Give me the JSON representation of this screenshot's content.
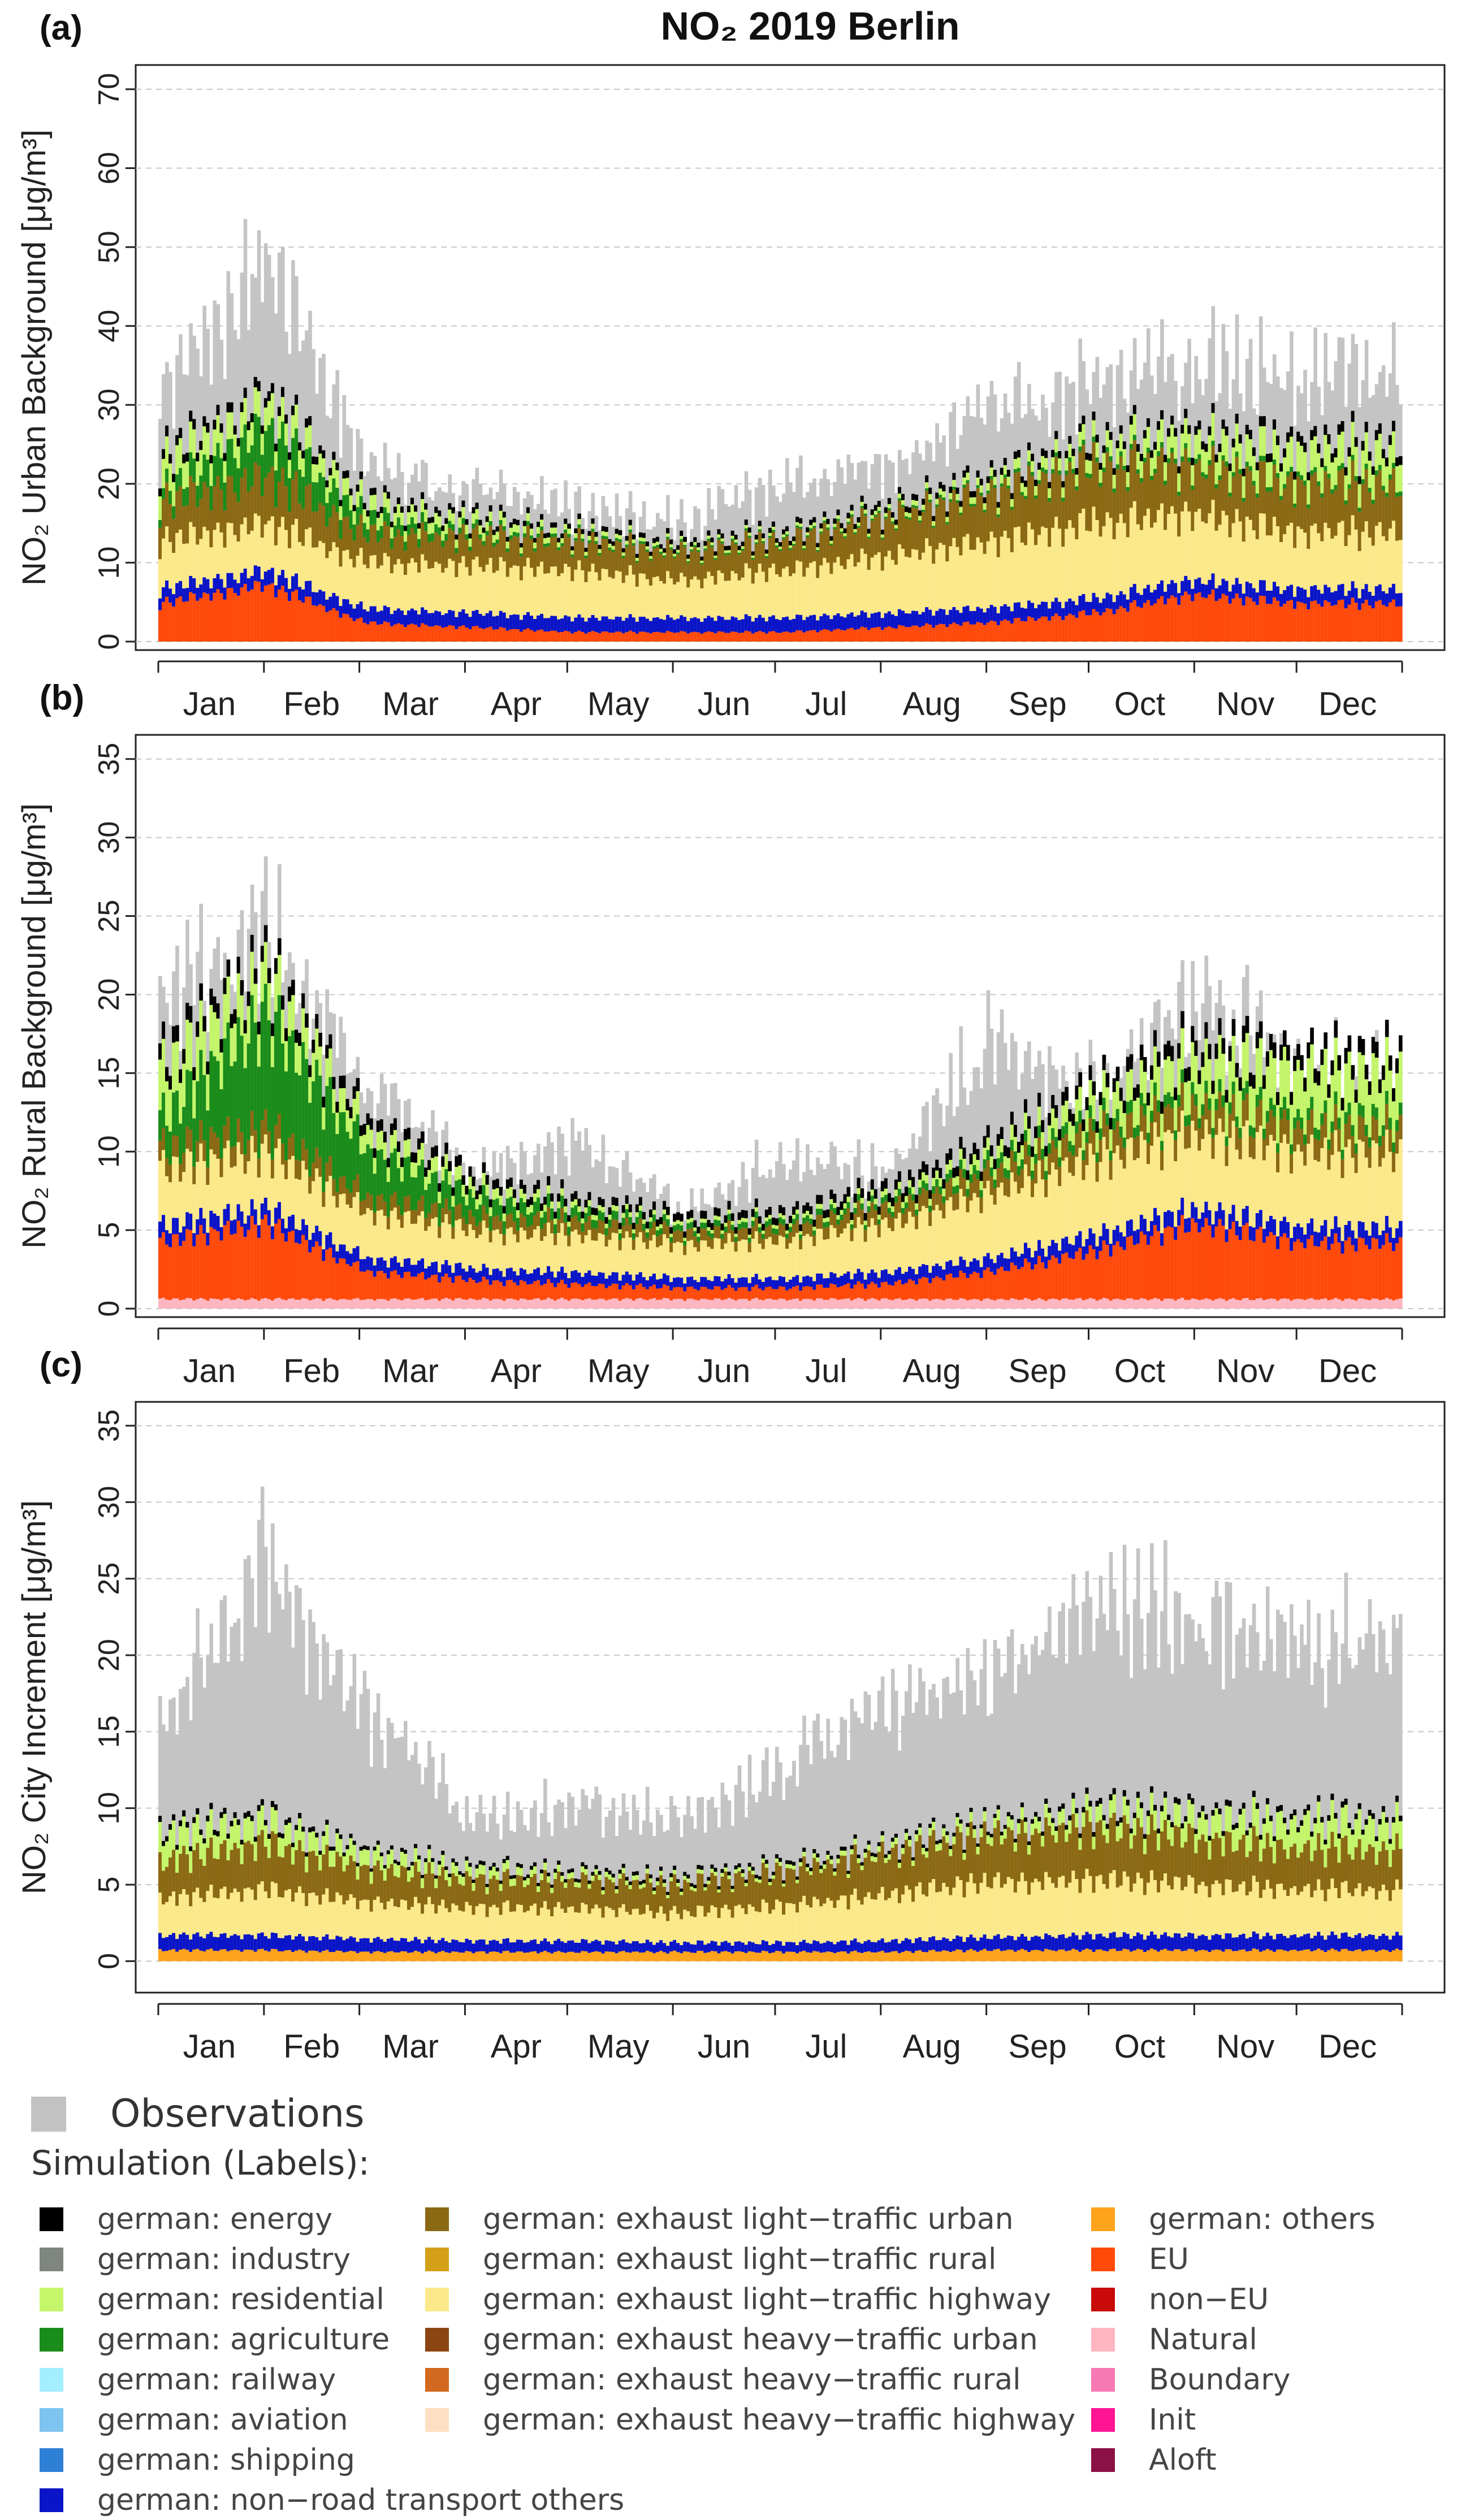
{
  "figure_title": "NO₂  2019 Berlin",
  "panels": [
    {
      "tag": "(a)",
      "ylabel": "NO₂ Urban Background [μg/m³]"
    },
    {
      "tag": "(b)",
      "ylabel": "NO₂ Rural Background [μg/m³]"
    },
    {
      "tag": "(c)",
      "ylabel": "NO₂ City Increment [μg/m³]"
    }
  ],
  "legend": {
    "observations_label": "Observations",
    "simulation_title": "Simulation (Labels):",
    "columns": [
      [
        {
          "label": "german: energy",
          "color": "#000000"
        },
        {
          "label": "german: industry",
          "color": "#7f8580"
        },
        {
          "label": "german: residential",
          "color": "#c4f56a"
        },
        {
          "label": "german: agriculture",
          "color": "#1a8c1a"
        },
        {
          "label": "german: railway",
          "color": "#a3eeff"
        },
        {
          "label": "german: aviation",
          "color": "#7ec4f0"
        },
        {
          "label": "german: shipping",
          "color": "#2e7fd6"
        },
        {
          "label": "german: non−road transport others",
          "color": "#0a14c8"
        }
      ],
      [
        {
          "label": "german: exhaust light−traffic urban",
          "color": "#8b6914"
        },
        {
          "label": "german: exhaust light−traffic rural",
          "color": "#d4a017"
        },
        {
          "label": "german: exhaust light−traffic highway",
          "color": "#fce98a"
        },
        {
          "label": "german: exhaust heavy−traffic urban",
          "color": "#8b4513"
        },
        {
          "label": "german: exhaust heavy−traffic rural",
          "color": "#d2691e"
        },
        {
          "label": "german: exhaust heavy−traffic highway",
          "color": "#fde0c4"
        }
      ],
      [
        {
          "label": "german: others",
          "color": "#ffa31a"
        },
        {
          "label": "EU",
          "color": "#ff4a0a"
        },
        {
          "label": "non−EU",
          "color": "#c80a0a"
        },
        {
          "label": "Natural",
          "color": "#ffb6c1"
        },
        {
          "label": "Boundary",
          "color": "#f779b3"
        },
        {
          "label": "Init",
          "color": "#ff1493"
        },
        {
          "label": "Aloft",
          "color": "#8b1046"
        }
      ]
    ]
  },
  "chart_data": [
    {
      "type": "area",
      "title": "NO₂  2019 Berlin",
      "panel": "(a)",
      "ylabel": "NO₂ Urban Background [μg/m³]",
      "xlabel": "",
      "x": [
        "Jan",
        "Feb",
        "Mar",
        "Apr",
        "May",
        "Jun",
        "Jul",
        "Aug",
        "Sep",
        "Oct",
        "Nov",
        "Dec"
      ],
      "ylim": [
        0,
        72
      ],
      "yticks": [
        0,
        10,
        20,
        30,
        40,
        50,
        60,
        70
      ],
      "grid": "horizontal dashed",
      "observations_monthly_peak": [
        40,
        62,
        30,
        24,
        22,
        19,
        26,
        28,
        37,
        42,
        45,
        43
      ],
      "series": [
        {
          "name": "EU",
          "values": [
            4,
            6,
            2,
            1.5,
            1,
            1,
            1,
            1.5,
            2,
            3,
            5,
            4
          ]
        },
        {
          "name": "german: non−road transport others",
          "values": [
            1.5,
            1.5,
            1.5,
            1.5,
            1.5,
            1.5,
            1.5,
            1.5,
            1.5,
            1.5,
            1.5,
            1.5
          ]
        },
        {
          "name": "german: exhaust light−traffic highway",
          "values": [
            5,
            5,
            5,
            5,
            5,
            4,
            5,
            6,
            7,
            8,
            7,
            6
          ]
        },
        {
          "name": "german: exhaust light−traffic urban",
          "values": [
            4,
            5,
            3,
            3,
            3,
            3,
            3,
            4,
            5,
            6,
            5,
            5
          ]
        },
        {
          "name": "german: agriculture",
          "values": [
            1,
            5,
            1.5,
            0.5,
            0.3,
            0.2,
            0.2,
            0.2,
            0.3,
            0.5,
            0.5,
            0.5
          ]
        },
        {
          "name": "german: residential",
          "values": [
            3,
            2.5,
            1.5,
            1,
            0.5,
            0.3,
            0.3,
            0.4,
            0.8,
            1.5,
            2.5,
            3
          ]
        },
        {
          "name": "german: energy",
          "values": [
            1,
            1,
            0.7,
            0.6,
            0.5,
            0.5,
            0.5,
            0.6,
            0.7,
            0.8,
            0.9,
            1
          ]
        }
      ]
    },
    {
      "type": "area",
      "panel": "(b)",
      "ylabel": "NO₂ Rural Background [μg/m³]",
      "xlabel": "",
      "x": [
        "Jan",
        "Feb",
        "Mar",
        "Apr",
        "May",
        "Jun",
        "Jul",
        "Aug",
        "Sep",
        "Oct",
        "Nov",
        "Dec"
      ],
      "ylim": [
        0,
        36
      ],
      "yticks": [
        0,
        5,
        10,
        15,
        20,
        25,
        30,
        35
      ],
      "grid": "horizontal dashed",
      "observations_monthly_peak": [
        24,
        31,
        19,
        11,
        14,
        8,
        12,
        11,
        22,
        18,
        25,
        20
      ],
      "series": [
        {
          "name": "Natural",
          "values": [
            0.5,
            0.5,
            0.5,
            0.5,
            0.5,
            0.5,
            0.5,
            0.5,
            0.5,
            0.5,
            0.5,
            0.5
          ]
        },
        {
          "name": "EU",
          "values": [
            3,
            4,
            1.5,
            1,
            0.8,
            0.6,
            0.6,
            0.8,
            1.5,
            2.5,
            4,
            3
          ]
        },
        {
          "name": "german: non−road transport others",
          "values": [
            0.8,
            0.8,
            0.7,
            0.6,
            0.6,
            0.5,
            0.5,
            0.6,
            0.7,
            0.8,
            0.8,
            0.8
          ]
        },
        {
          "name": "german: exhaust light−traffic highway",
          "values": [
            3,
            3,
            2.5,
            2,
            2,
            1.8,
            2,
            2.5,
            3.5,
            4,
            4,
            4
          ]
        },
        {
          "name": "german: exhaust light−traffic urban",
          "values": [
            1,
            1.2,
            0.8,
            0.7,
            0.7,
            0.6,
            0.6,
            0.8,
            1,
            1.2,
            1.3,
            1.2
          ]
        },
        {
          "name": "german: agriculture",
          "values": [
            1.5,
            6,
            2.5,
            1,
            0.5,
            0.3,
            0.3,
            0.3,
            0.5,
            0.6,
            0.6,
            0.6
          ]
        },
        {
          "name": "german: residential",
          "values": [
            2.5,
            2,
            1,
            0.6,
            0.3,
            0.2,
            0.2,
            0.3,
            0.6,
            1.2,
            2,
            2.5
          ]
        },
        {
          "name": "german: energy",
          "values": [
            0.8,
            0.8,
            0.6,
            0.5,
            0.4,
            0.4,
            0.4,
            0.5,
            0.6,
            0.7,
            0.8,
            0.8
          ]
        }
      ]
    },
    {
      "type": "area",
      "panel": "(c)",
      "ylabel": "NO₂ City Increment [μg/m³]",
      "xlabel": "",
      "x": [
        "Jan",
        "Feb",
        "Mar",
        "Apr",
        "May",
        "Jun",
        "Jul",
        "Aug",
        "Sep",
        "Oct",
        "Nov",
        "Dec"
      ],
      "ylim": [
        -1.5,
        36
      ],
      "yticks": [
        0,
        5,
        10,
        15,
        20,
        25,
        30,
        35
      ],
      "grid": "horizontal dashed",
      "observations_monthly_peak": [
        20,
        33,
        21,
        12,
        13,
        12,
        16,
        22,
        24,
        30,
        28,
        27
      ],
      "series": [
        {
          "name": "german: others",
          "values": [
            0.6,
            0.6,
            0.5,
            0.5,
            0.5,
            0.5,
            0.5,
            0.5,
            0.6,
            0.6,
            0.6,
            0.6
          ]
        },
        {
          "name": "german: non−road transport others",
          "values": [
            0.8,
            0.8,
            0.7,
            0.6,
            0.6,
            0.5,
            0.5,
            0.6,
            0.7,
            0.8,
            0.8,
            0.8
          ]
        },
        {
          "name": "german: exhaust light−traffic highway",
          "values": [
            2,
            2.5,
            2,
            1.8,
            1.8,
            1.6,
            2,
            2.5,
            3,
            3,
            2.8,
            2.5
          ]
        },
        {
          "name": "german: exhaust light−traffic urban",
          "values": [
            2,
            2.5,
            1.8,
            1.5,
            1.5,
            1.5,
            1.8,
            2.2,
            2.5,
            2.8,
            2.5,
            2.2
          ]
        },
        {
          "name": "german: residential",
          "values": [
            1.5,
            1.2,
            0.8,
            0.5,
            0.3,
            0.2,
            0.2,
            0.3,
            0.5,
            0.8,
            1.2,
            1.5
          ]
        },
        {
          "name": "german: energy",
          "values": [
            0.3,
            0.3,
            0.2,
            0.2,
            0.2,
            0.2,
            0.2,
            0.2,
            0.2,
            0.3,
            0.3,
            0.3
          ]
        }
      ]
    }
  ]
}
